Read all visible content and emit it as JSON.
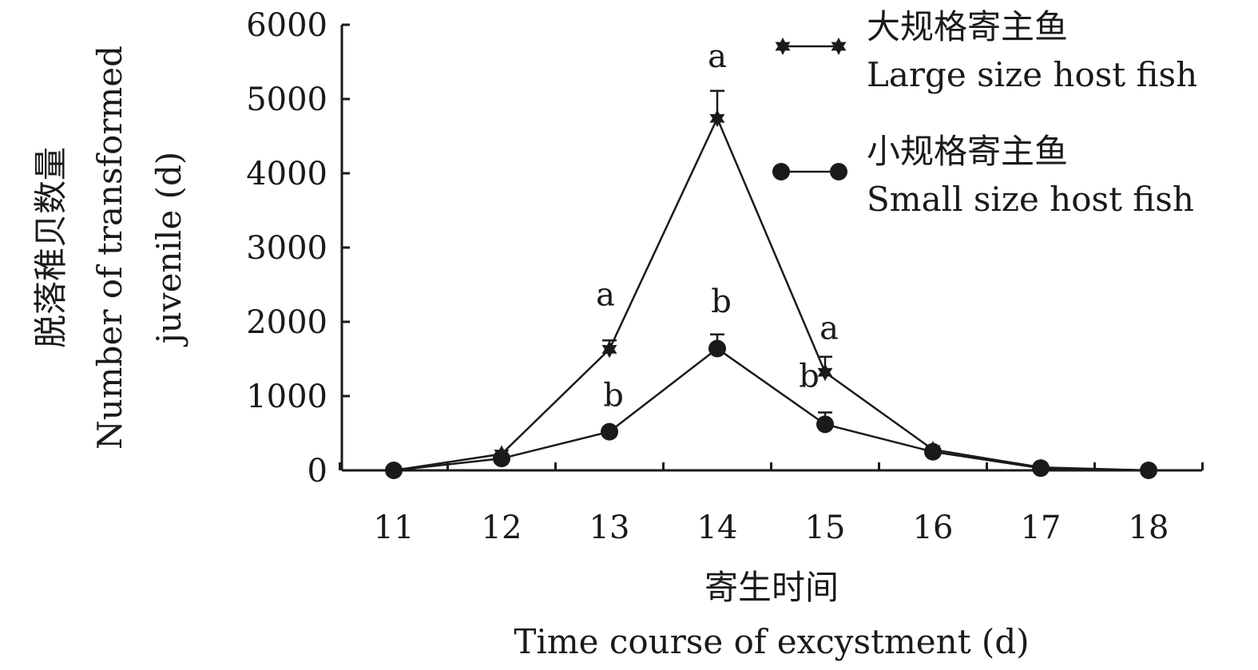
{
  "chart_data": {
    "type": "line",
    "ylabel_cn": "脱落稚贝数量",
    "ylabel_en_line1": "Number of transformed",
    "ylabel_en_line2": "juvenile (d)",
    "xlabel_cn": "寄生时间",
    "xlabel_en": "Time course of excystment (d)",
    "x": [
      11,
      12,
      13,
      14,
      15,
      16,
      17,
      18
    ],
    "x_tick_labels": [
      "11",
      "12",
      "13",
      "14",
      "15",
      "16",
      "17",
      "18"
    ],
    "y_tick_labels": [
      "0",
      "1000",
      "2000",
      "3000",
      "4000",
      "5000",
      "6000"
    ],
    "ylim": [
      0,
      6000
    ],
    "grid": false,
    "legend_position": "top-right",
    "series": [
      {
        "name_cn": "大规格寄主鱼",
        "name_en": "Large size host fish",
        "marker": "star",
        "values": [
          0,
          220,
          1630,
          4740,
          1320,
          280,
          40,
          0
        ],
        "error": [
          0,
          0,
          120,
          370,
          210,
          0,
          0,
          0
        ],
        "sig_labels": [
          "",
          "",
          "a",
          "a",
          "a",
          "",
          "",
          ""
        ]
      },
      {
        "name_cn": "小规格寄主鱼",
        "name_en": "Small size host fish",
        "marker": "circle",
        "values": [
          0,
          160,
          520,
          1640,
          620,
          250,
          30,
          0
        ],
        "error": [
          0,
          0,
          0,
          190,
          160,
          0,
          0,
          0
        ],
        "sig_labels": [
          "",
          "",
          "b",
          "b",
          "b",
          "",
          "",
          ""
        ]
      }
    ]
  }
}
